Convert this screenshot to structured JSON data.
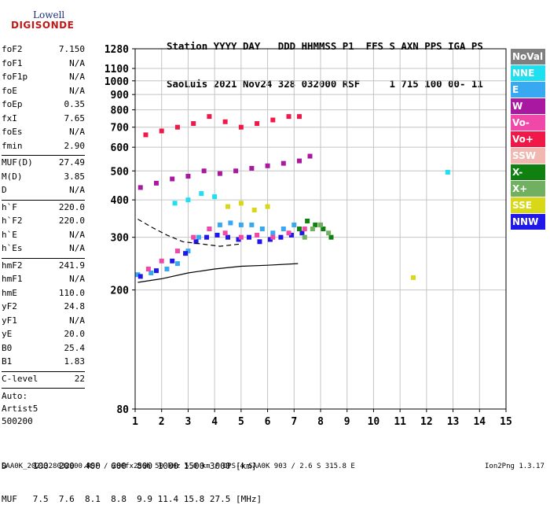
{
  "logo": {
    "line1": "Lowell",
    "line2": "DIGISONDE"
  },
  "header": {
    "line1": "Station YYYY DAY   DDD HHMMSS P1  FFS S AXN PPS IGA PS",
    "line2": "SaoLuis 2021 Nov24 328 032000 RSF     1 715 100 00- 11"
  },
  "params_group1": [
    {
      "k": "foF2",
      "v": "7.150"
    },
    {
      "k": "foF1",
      "v": "N/A"
    },
    {
      "k": "foF1p",
      "v": "N/A"
    },
    {
      "k": "foE",
      "v": "N/A"
    },
    {
      "k": "foEp",
      "v": "0.35"
    },
    {
      "k": "fxI",
      "v": "7.65"
    },
    {
      "k": "foEs",
      "v": "N/A"
    },
    {
      "k": "fmin",
      "v": "2.90"
    }
  ],
  "params_group2": [
    {
      "k": "MUF(D)",
      "v": "27.49"
    },
    {
      "k": "M(D)",
      "v": "3.85"
    },
    {
      "k": "D",
      "v": "N/A"
    }
  ],
  "params_group3": [
    {
      "k": "h`F",
      "v": "220.0"
    },
    {
      "k": "h`F2",
      "v": "220.0"
    },
    {
      "k": "h`E",
      "v": "N/A"
    },
    {
      "k": "h`Es",
      "v": "N/A"
    }
  ],
  "params_group4": [
    {
      "k": "hmF2",
      "v": "241.9"
    },
    {
      "k": "hmF1",
      "v": "N/A"
    },
    {
      "k": "hmE",
      "v": "110.0"
    },
    {
      "k": "yF2",
      "v": "24.8"
    },
    {
      "k": "yF1",
      "v": "N/A"
    },
    {
      "k": "yE",
      "v": "20.0"
    },
    {
      "k": "B0",
      "v": "25.4"
    },
    {
      "k": "B1",
      "v": "1.83"
    }
  ],
  "params_group5": [
    {
      "k": "C-level",
      "v": "22"
    }
  ],
  "auto": {
    "line1": "Auto:",
    "line2": "Artist5",
    "line3": "500200"
  },
  "legend": [
    {
      "label": "NoVal",
      "color": "#7f7f7f"
    },
    {
      "label": "NNE",
      "color": "#1ee0f0"
    },
    {
      "label": "E",
      "color": "#38a8f0"
    },
    {
      "label": "W",
      "color": "#a818a0"
    },
    {
      "label": "Vo-",
      "color": "#f048a8"
    },
    {
      "label": "Vo+",
      "color": "#f01848"
    },
    {
      "label": "SSW",
      "color": "#f0b8b0"
    },
    {
      "label": "X-",
      "color": "#108010"
    },
    {
      "label": "X+",
      "color": "#70b060"
    },
    {
      "label": "SSE",
      "color": "#d8d818"
    },
    {
      "label": "NNW",
      "color": "#2018e8"
    }
  ],
  "footer": {
    "d_line": "D     100  200  400  600  800 1000 1500 3000 [km]",
    "muf_line": "MUF   7.5  7.6  8.1  8.8  9.9 11.4 15.8 27.5 [MHz]",
    "file_line": "SAA0K_2021328032000.RSF / 280fx256h 50 kHz 5.0 km / DPS-4 SAA0K 903 / 2.6 S 315.8 E",
    "version": "Ion2Png 1.3.17"
  },
  "chart_data": {
    "type": "scatter",
    "xlim": [
      1,
      15
    ],
    "ylim": [
      80,
      1280
    ],
    "x_ticks": [
      1,
      2,
      3,
      4,
      5,
      6,
      7,
      8,
      9,
      10,
      11,
      12,
      13,
      14,
      15
    ],
    "y_ticks": [
      80,
      200,
      300,
      400,
      500,
      600,
      700,
      800,
      900,
      1000,
      1100,
      1280
    ],
    "y_scale": "log",
    "grid": true,
    "series": [
      {
        "name": "E",
        "x": [
          1.1,
          1.6,
          2.2,
          2.6,
          3.0,
          3.4,
          3.8,
          4.2,
          4.6,
          5.0,
          5.4,
          5.8,
          6.2,
          6.6,
          7.0
        ],
        "y": [
          225,
          228,
          235,
          245,
          270,
          300,
          320,
          330,
          335,
          330,
          330,
          320,
          310,
          320,
          330
        ]
      },
      {
        "name": "NNW",
        "x": [
          1.2,
          1.8,
          2.4,
          2.9,
          3.3,
          3.7,
          4.1,
          4.5,
          4.9,
          5.3,
          5.7,
          6.1,
          6.5,
          6.9,
          7.3
        ],
        "y": [
          222,
          232,
          250,
          265,
          290,
          300,
          305,
          300,
          295,
          300,
          290,
          295,
          300,
          305,
          310
        ]
      },
      {
        "name": "W",
        "x": [
          1.2,
          1.8,
          2.4,
          3.0,
          3.6,
          4.2,
          4.8,
          5.4,
          6.0,
          6.6,
          7.2,
          7.6
        ],
        "y": [
          440,
          455,
          470,
          480,
          500,
          490,
          500,
          510,
          520,
          530,
          540,
          560
        ]
      },
      {
        "name": "Vo-",
        "x": [
          1.5,
          2.0,
          2.6,
          3.2,
          3.8,
          4.4,
          5.0,
          5.6,
          6.2,
          6.8,
          7.4,
          8.0
        ],
        "y": [
          235,
          250,
          270,
          300,
          320,
          310,
          300,
          305,
          300,
          310,
          320,
          330
        ]
      },
      {
        "name": "Vo+",
        "x": [
          1.4,
          2.0,
          2.6,
          3.2,
          3.8,
          4.4,
          5.0,
          5.6,
          6.2,
          6.8,
          7.2
        ],
        "y": [
          660,
          680,
          700,
          720,
          760,
          730,
          700,
          720,
          740,
          760,
          760
        ]
      },
      {
        "name": "X-",
        "x": [
          7.2,
          7.5,
          7.8,
          8.1,
          8.4
        ],
        "y": [
          320,
          340,
          330,
          320,
          300
        ]
      },
      {
        "name": "X+",
        "x": [
          7.4,
          7.7,
          8.0,
          8.3
        ],
        "y": [
          300,
          320,
          330,
          310
        ]
      },
      {
        "name": "SSE",
        "x": [
          4.5,
          5.0,
          5.5,
          6.0,
          11.5
        ],
        "y": [
          380,
          390,
          370,
          380,
          220
        ]
      },
      {
        "name": "NNE",
        "x": [
          2.5,
          3.0,
          3.5,
          4.0,
          12.8
        ],
        "y": [
          390,
          400,
          420,
          410,
          495
        ]
      }
    ],
    "traces": [
      {
        "name": "profile",
        "style": "solid",
        "x": [
          1.1,
          2.0,
          3.0,
          4.0,
          5.0,
          6.0,
          7.15
        ],
        "y": [
          212,
          218,
          228,
          235,
          240,
          242,
          245
        ]
      },
      {
        "name": "profile-upper",
        "style": "dashed",
        "x": [
          1.1,
          1.6,
          2.2,
          2.8,
          3.5,
          4.2,
          5.0
        ],
        "y": [
          345,
          325,
          305,
          290,
          285,
          280,
          285
        ]
      }
    ]
  }
}
